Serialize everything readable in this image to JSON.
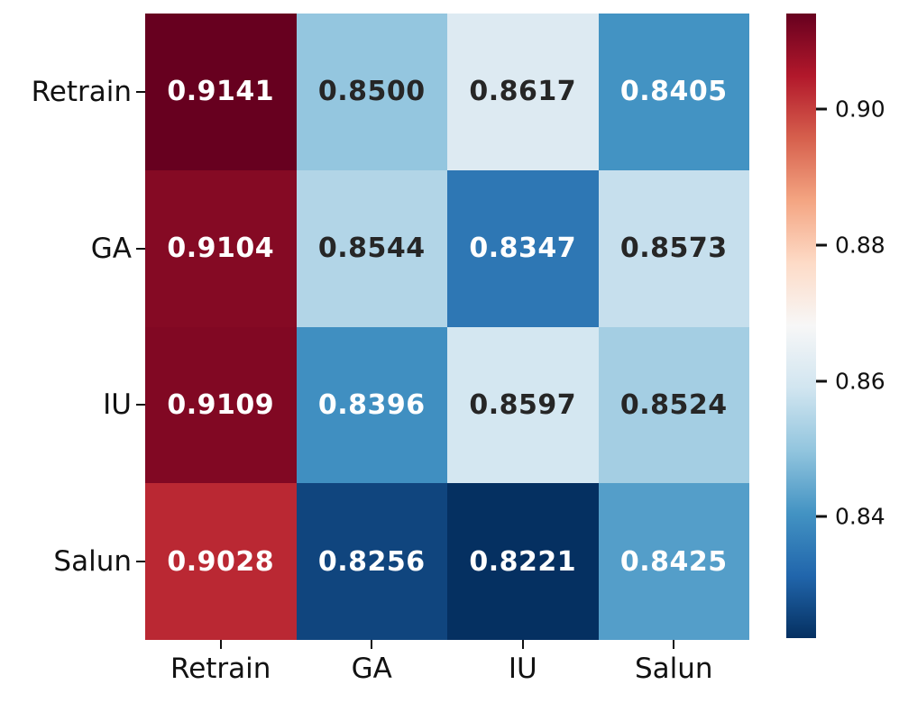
{
  "chart_data": {
    "type": "heatmap",
    "rows": [
      "Retrain",
      "GA",
      "IU",
      "Salun"
    ],
    "columns": [
      "Retrain",
      "GA",
      "IU",
      "Salun"
    ],
    "values": [
      [
        0.9141,
        0.85,
        0.8617,
        0.8405
      ],
      [
        0.9104,
        0.8544,
        0.8347,
        0.8573
      ],
      [
        0.9109,
        0.8396,
        0.8597,
        0.8524
      ],
      [
        0.9028,
        0.8256,
        0.8221,
        0.8425
      ]
    ],
    "cell_labels": [
      [
        "0.9141",
        "0.8500",
        "0.8617",
        "0.8405"
      ],
      [
        "0.9104",
        "0.8544",
        "0.8347",
        "0.8573"
      ],
      [
        "0.9109",
        "0.8396",
        "0.8597",
        "0.8524"
      ],
      [
        "0.9028",
        "0.8256",
        "0.8221",
        "0.8425"
      ]
    ],
    "vmin": 0.8221,
    "vmax": 0.9141,
    "colormap": "RdBu_r",
    "colormap_stops": [
      "#053061",
      "#2166ac",
      "#4393c3",
      "#92c5de",
      "#d1e5f0",
      "#f7f7f7",
      "#fddbc7",
      "#f4a582",
      "#d6604d",
      "#b2182b",
      "#67001f"
    ],
    "annotation_text_colors": {
      "light": "#ffffff",
      "dark": "#262626"
    },
    "axis_tick_color": "#111111",
    "grid": false,
    "title": "",
    "xlabel": "",
    "ylabel": "",
    "colorbar": {
      "position": "right",
      "ticks": [
        0.9,
        0.88,
        0.86,
        0.84
      ],
      "tick_labels": [
        "0.90",
        "0.88",
        "0.86",
        "0.84"
      ]
    }
  }
}
